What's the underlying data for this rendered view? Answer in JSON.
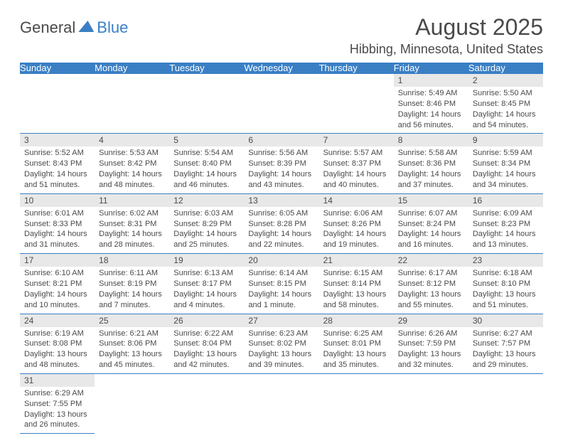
{
  "logo": {
    "text1": "General",
    "text2": "Blue"
  },
  "title": "August 2025",
  "location": "Hibbing, Minnesota, United States",
  "colors": {
    "header_bg": "#3a7fc4",
    "header_text": "#ffffff",
    "daynum_bg": "#e8e8e8",
    "text": "#4a4a4a",
    "border": "#3a7fc4",
    "background": "#ffffff"
  },
  "day_names": [
    "Sunday",
    "Monday",
    "Tuesday",
    "Wednesday",
    "Thursday",
    "Friday",
    "Saturday"
  ],
  "weeks": [
    [
      null,
      null,
      null,
      null,
      null,
      {
        "n": "1",
        "sr": "Sunrise: 5:49 AM",
        "ss": "Sunset: 8:46 PM",
        "d1": "Daylight: 14 hours",
        "d2": "and 56 minutes."
      },
      {
        "n": "2",
        "sr": "Sunrise: 5:50 AM",
        "ss": "Sunset: 8:45 PM",
        "d1": "Daylight: 14 hours",
        "d2": "and 54 minutes."
      }
    ],
    [
      {
        "n": "3",
        "sr": "Sunrise: 5:52 AM",
        "ss": "Sunset: 8:43 PM",
        "d1": "Daylight: 14 hours",
        "d2": "and 51 minutes."
      },
      {
        "n": "4",
        "sr": "Sunrise: 5:53 AM",
        "ss": "Sunset: 8:42 PM",
        "d1": "Daylight: 14 hours",
        "d2": "and 48 minutes."
      },
      {
        "n": "5",
        "sr": "Sunrise: 5:54 AM",
        "ss": "Sunset: 8:40 PM",
        "d1": "Daylight: 14 hours",
        "d2": "and 46 minutes."
      },
      {
        "n": "6",
        "sr": "Sunrise: 5:56 AM",
        "ss": "Sunset: 8:39 PM",
        "d1": "Daylight: 14 hours",
        "d2": "and 43 minutes."
      },
      {
        "n": "7",
        "sr": "Sunrise: 5:57 AM",
        "ss": "Sunset: 8:37 PM",
        "d1": "Daylight: 14 hours",
        "d2": "and 40 minutes."
      },
      {
        "n": "8",
        "sr": "Sunrise: 5:58 AM",
        "ss": "Sunset: 8:36 PM",
        "d1": "Daylight: 14 hours",
        "d2": "and 37 minutes."
      },
      {
        "n": "9",
        "sr": "Sunrise: 5:59 AM",
        "ss": "Sunset: 8:34 PM",
        "d1": "Daylight: 14 hours",
        "d2": "and 34 minutes."
      }
    ],
    [
      {
        "n": "10",
        "sr": "Sunrise: 6:01 AM",
        "ss": "Sunset: 8:33 PM",
        "d1": "Daylight: 14 hours",
        "d2": "and 31 minutes."
      },
      {
        "n": "11",
        "sr": "Sunrise: 6:02 AM",
        "ss": "Sunset: 8:31 PM",
        "d1": "Daylight: 14 hours",
        "d2": "and 28 minutes."
      },
      {
        "n": "12",
        "sr": "Sunrise: 6:03 AM",
        "ss": "Sunset: 8:29 PM",
        "d1": "Daylight: 14 hours",
        "d2": "and 25 minutes."
      },
      {
        "n": "13",
        "sr": "Sunrise: 6:05 AM",
        "ss": "Sunset: 8:28 PM",
        "d1": "Daylight: 14 hours",
        "d2": "and 22 minutes."
      },
      {
        "n": "14",
        "sr": "Sunrise: 6:06 AM",
        "ss": "Sunset: 8:26 PM",
        "d1": "Daylight: 14 hours",
        "d2": "and 19 minutes."
      },
      {
        "n": "15",
        "sr": "Sunrise: 6:07 AM",
        "ss": "Sunset: 8:24 PM",
        "d1": "Daylight: 14 hours",
        "d2": "and 16 minutes."
      },
      {
        "n": "16",
        "sr": "Sunrise: 6:09 AM",
        "ss": "Sunset: 8:23 PM",
        "d1": "Daylight: 14 hours",
        "d2": "and 13 minutes."
      }
    ],
    [
      {
        "n": "17",
        "sr": "Sunrise: 6:10 AM",
        "ss": "Sunset: 8:21 PM",
        "d1": "Daylight: 14 hours",
        "d2": "and 10 minutes."
      },
      {
        "n": "18",
        "sr": "Sunrise: 6:11 AM",
        "ss": "Sunset: 8:19 PM",
        "d1": "Daylight: 14 hours",
        "d2": "and 7 minutes."
      },
      {
        "n": "19",
        "sr": "Sunrise: 6:13 AM",
        "ss": "Sunset: 8:17 PM",
        "d1": "Daylight: 14 hours",
        "d2": "and 4 minutes."
      },
      {
        "n": "20",
        "sr": "Sunrise: 6:14 AM",
        "ss": "Sunset: 8:15 PM",
        "d1": "Daylight: 14 hours",
        "d2": "and 1 minute."
      },
      {
        "n": "21",
        "sr": "Sunrise: 6:15 AM",
        "ss": "Sunset: 8:14 PM",
        "d1": "Daylight: 13 hours",
        "d2": "and 58 minutes."
      },
      {
        "n": "22",
        "sr": "Sunrise: 6:17 AM",
        "ss": "Sunset: 8:12 PM",
        "d1": "Daylight: 13 hours",
        "d2": "and 55 minutes."
      },
      {
        "n": "23",
        "sr": "Sunrise: 6:18 AM",
        "ss": "Sunset: 8:10 PM",
        "d1": "Daylight: 13 hours",
        "d2": "and 51 minutes."
      }
    ],
    [
      {
        "n": "24",
        "sr": "Sunrise: 6:19 AM",
        "ss": "Sunset: 8:08 PM",
        "d1": "Daylight: 13 hours",
        "d2": "and 48 minutes."
      },
      {
        "n": "25",
        "sr": "Sunrise: 6:21 AM",
        "ss": "Sunset: 8:06 PM",
        "d1": "Daylight: 13 hours",
        "d2": "and 45 minutes."
      },
      {
        "n": "26",
        "sr": "Sunrise: 6:22 AM",
        "ss": "Sunset: 8:04 PM",
        "d1": "Daylight: 13 hours",
        "d2": "and 42 minutes."
      },
      {
        "n": "27",
        "sr": "Sunrise: 6:23 AM",
        "ss": "Sunset: 8:02 PM",
        "d1": "Daylight: 13 hours",
        "d2": "and 39 minutes."
      },
      {
        "n": "28",
        "sr": "Sunrise: 6:25 AM",
        "ss": "Sunset: 8:01 PM",
        "d1": "Daylight: 13 hours",
        "d2": "and 35 minutes."
      },
      {
        "n": "29",
        "sr": "Sunrise: 6:26 AM",
        "ss": "Sunset: 7:59 PM",
        "d1": "Daylight: 13 hours",
        "d2": "and 32 minutes."
      },
      {
        "n": "30",
        "sr": "Sunrise: 6:27 AM",
        "ss": "Sunset: 7:57 PM",
        "d1": "Daylight: 13 hours",
        "d2": "and 29 minutes."
      }
    ],
    [
      {
        "n": "31",
        "sr": "Sunrise: 6:29 AM",
        "ss": "Sunset: 7:55 PM",
        "d1": "Daylight: 13 hours",
        "d2": "and 26 minutes."
      },
      null,
      null,
      null,
      null,
      null,
      null
    ]
  ]
}
